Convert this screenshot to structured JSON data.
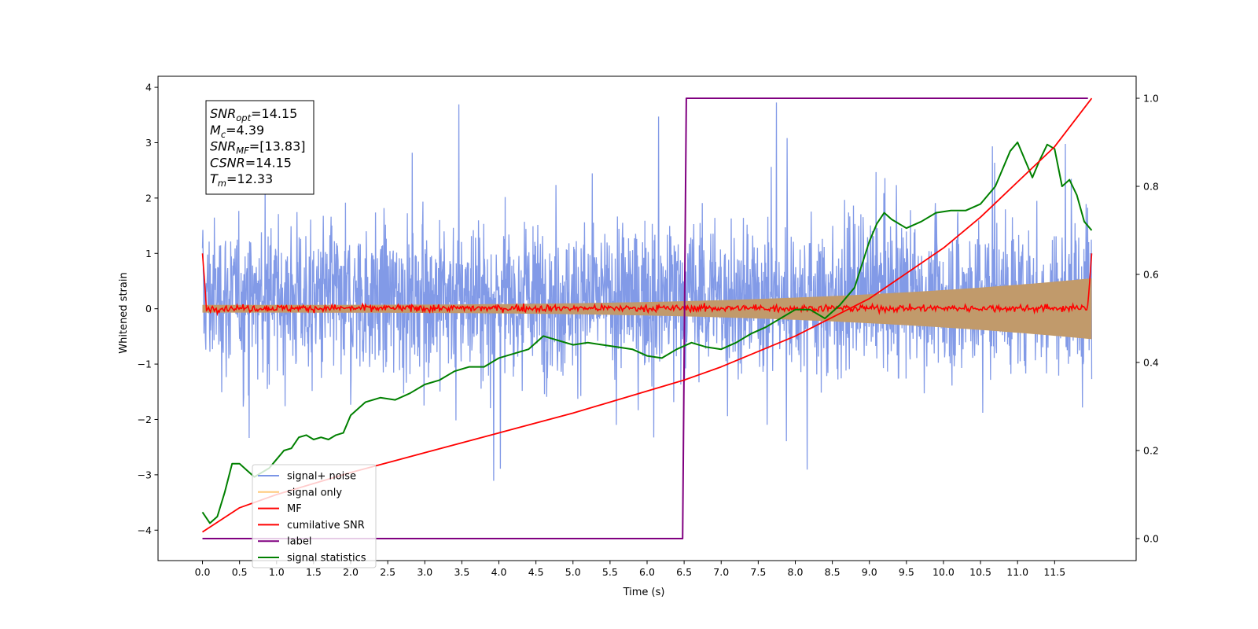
{
  "chart_data": {
    "type": "line",
    "xlabel": "Time (s)",
    "ylabel": "Whitened strain",
    "xlim": [
      -0.6,
      12.6
    ],
    "ylim": [
      -4.55,
      4.2
    ],
    "y2lim": [
      -0.05,
      1.05
    ],
    "x_ticks": [
      "0.0",
      "0.5",
      "1.0",
      "1.5",
      "2.0",
      "2.5",
      "3.0",
      "3.5",
      "4.0",
      "4.5",
      "5.0",
      "5.5",
      "6.0",
      "6.5",
      "7.0",
      "7.5",
      "8.0",
      "8.5",
      "9.0",
      "9.5",
      "10.0",
      "10.5",
      "11.0",
      "11.5"
    ],
    "x_tick_values": [
      0,
      0.5,
      1,
      1.5,
      2,
      2.5,
      3,
      3.5,
      4,
      4.5,
      5,
      5.5,
      6,
      6.5,
      7,
      7.5,
      8,
      8.5,
      9,
      9.5,
      10,
      10.5,
      11,
      11.5
    ],
    "y_ticks": [
      "−4",
      "−3",
      "−2",
      "−1",
      "0",
      "1",
      "2",
      "3",
      "4"
    ],
    "y_tick_values": [
      -4,
      -3,
      -2,
      -1,
      0,
      1,
      2,
      3,
      4
    ],
    "y2_ticks": [
      "0.0",
      "0.2",
      "0.4",
      "0.6",
      "0.8",
      "1.0"
    ],
    "y2_tick_values": [
      0,
      0.2,
      0.4,
      0.6,
      0.8,
      1.0
    ],
    "annotation": {
      "lines": [
        {
          "base": "SNR",
          "sub": "opt",
          "rest": "=14.15"
        },
        {
          "base": "M",
          "sub": "c",
          "rest": "=4.39"
        },
        {
          "base": "SNR",
          "sub": "MF",
          "rest": "=[13.83]"
        },
        {
          "base": "CSNR",
          "sub": "",
          "rest": "=14.15"
        },
        {
          "base": "T",
          "sub": "m",
          "rest": "=12.33"
        }
      ]
    },
    "legend": {
      "placement": "lower-left",
      "entries": [
        {
          "label": "signal+ noise",
          "color": "#7b95e6"
        },
        {
          "label": "signal only",
          "color": "#ffc97a"
        },
        {
          "label": "MF",
          "color": "#ff0000"
        },
        {
          "label": "cumilative SNR",
          "color": "#ff0000"
        },
        {
          "label": "label",
          "color": "#800080"
        },
        {
          "label": "signal statistics",
          "color": "#008000"
        }
      ]
    },
    "series": [
      {
        "name": "signal+ noise",
        "axis": "left",
        "color": "#7b95e6",
        "x_range": [
          0,
          12.0
        ],
        "typical_range": [
          -1.8,
          2.3
        ],
        "extremes": [
          -4.15,
          3.8
        ]
      },
      {
        "name": "signal only",
        "axis": "left",
        "color": "#c19a6b",
        "x_range": [
          0,
          12.0
        ],
        "envelope_start": 0.07,
        "envelope_end": 0.55
      },
      {
        "name": "MF",
        "axis": "left",
        "color": "#ff0000",
        "x_range": [
          0,
          12.0
        ],
        "typical_range": [
          -0.08,
          0.12
        ],
        "edge_values": [
          1.0,
          1.0
        ]
      },
      {
        "name": "cumilative SNR",
        "axis": "right",
        "color": "#ff0000",
        "x": [
          0,
          0.5,
          1,
          2,
          3,
          4,
          5,
          6,
          6.5,
          7,
          8,
          9,
          10,
          10.5,
          11,
          11.5,
          12.0
        ],
        "y": [
          0.015,
          0.07,
          0.1,
          0.15,
          0.195,
          0.24,
          0.285,
          0.335,
          0.36,
          0.39,
          0.46,
          0.545,
          0.66,
          0.73,
          0.81,
          0.89,
          1.0
        ]
      },
      {
        "name": "label",
        "axis": "right",
        "color": "#800080",
        "x": [
          0,
          6.48,
          6.53,
          11.95
        ],
        "y": [
          0,
          0,
          1,
          1
        ]
      },
      {
        "name": "signal statistics",
        "axis": "right",
        "color": "#008000",
        "x": [
          0,
          0.1,
          0.2,
          0.3,
          0.4,
          0.5,
          0.6,
          0.7,
          0.8,
          0.9,
          1.0,
          1.1,
          1.2,
          1.3,
          1.4,
          1.5,
          1.6,
          1.7,
          1.8,
          1.9,
          2.0,
          2.2,
          2.4,
          2.6,
          2.8,
          3.0,
          3.2,
          3.4,
          3.6,
          3.8,
          4.0,
          4.2,
          4.4,
          4.6,
          4.8,
          5.0,
          5.2,
          5.4,
          5.6,
          5.8,
          6.0,
          6.2,
          6.4,
          6.6,
          6.8,
          7.0,
          7.2,
          7.4,
          7.6,
          7.8,
          8.0,
          8.2,
          8.4,
          8.6,
          8.8,
          9.0,
          9.1,
          9.2,
          9.3,
          9.5,
          9.7,
          9.9,
          10.1,
          10.3,
          10.5,
          10.7,
          10.9,
          11.0,
          11.1,
          11.2,
          11.3,
          11.4,
          11.5,
          11.6,
          11.7,
          11.8,
          11.9,
          12.0
        ],
        "y": [
          0.06,
          0.035,
          0.05,
          0.105,
          0.17,
          0.17,
          0.155,
          0.14,
          0.15,
          0.16,
          0.18,
          0.2,
          0.205,
          0.23,
          0.235,
          0.225,
          0.23,
          0.225,
          0.235,
          0.24,
          0.28,
          0.31,
          0.32,
          0.315,
          0.33,
          0.35,
          0.36,
          0.38,
          0.39,
          0.39,
          0.41,
          0.42,
          0.43,
          0.46,
          0.45,
          0.44,
          0.445,
          0.44,
          0.435,
          0.43,
          0.415,
          0.41,
          0.43,
          0.445,
          0.435,
          0.43,
          0.445,
          0.465,
          0.48,
          0.5,
          0.52,
          0.52,
          0.5,
          0.53,
          0.57,
          0.675,
          0.715,
          0.74,
          0.725,
          0.705,
          0.72,
          0.74,
          0.745,
          0.745,
          0.76,
          0.8,
          0.88,
          0.9,
          0.86,
          0.82,
          0.86,
          0.895,
          0.885,
          0.8,
          0.815,
          0.78,
          0.72,
          0.7
        ]
      }
    ]
  }
}
